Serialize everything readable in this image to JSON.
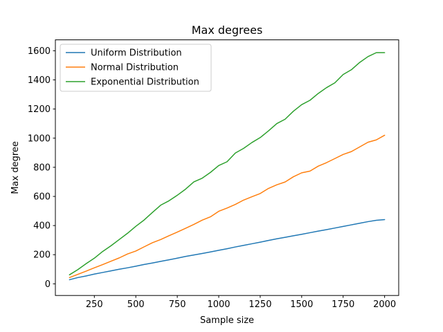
{
  "chart_data": {
    "type": "line",
    "title": "Max degrees",
    "xlabel": "Sample size",
    "ylabel": "Max degree",
    "xlim": [
      15,
      2085
    ],
    "ylim": [
      -80,
      1675
    ],
    "xticks": [
      250,
      500,
      750,
      1000,
      1250,
      1500,
      1750,
      2000
    ],
    "yticks": [
      0,
      200,
      400,
      600,
      800,
      1000,
      1200,
      1400,
      1600
    ],
    "grid": false,
    "legend_position": "top-left",
    "x": [
      100,
      150,
      200,
      250,
      300,
      350,
      400,
      450,
      500,
      550,
      600,
      650,
      700,
      750,
      800,
      850,
      900,
      950,
      1000,
      1050,
      1100,
      1150,
      1200,
      1250,
      1300,
      1350,
      1400,
      1450,
      1500,
      1550,
      1600,
      1650,
      1700,
      1750,
      1800,
      1850,
      1900,
      1950,
      2000
    ],
    "series": [
      {
        "name": "Uniform Distribution",
        "color": "#1f77b4",
        "values": [
          28,
          43,
          54,
          67,
          78,
          89,
          100,
          110,
          121,
          133,
          143,
          154,
          165,
          176,
          188,
          198,
          208,
          219,
          230,
          241,
          253,
          264,
          275,
          286,
          298,
          309,
          319,
          330,
          340,
          351,
          362,
          372,
          383,
          394,
          405,
          416,
          427,
          436,
          441
        ]
      },
      {
        "name": "Normal Distribution",
        "color": "#ff7f0e",
        "values": [
          43,
          65,
          87,
          110,
          132,
          155,
          178,
          205,
          225,
          254,
          282,
          304,
          330,
          355,
          381,
          408,
          437,
          460,
          498,
          520,
          545,
          575,
          598,
          620,
          655,
          680,
          699,
          735,
          762,
          774,
          808,
          832,
          860,
          888,
          908,
          940,
          972,
          988,
          1020
        ]
      },
      {
        "name": "Exponential Distribution",
        "color": "#2ca02c",
        "values": [
          62,
          97,
          138,
          176,
          222,
          261,
          304,
          347,
          395,
          438,
          490,
          540,
          570,
          608,
          650,
          700,
          725,
          765,
          812,
          838,
          898,
          930,
          970,
          1004,
          1050,
          1100,
          1130,
          1185,
          1230,
          1260,
          1307,
          1347,
          1380,
          1437,
          1470,
          1520,
          1560,
          1587,
          1587
        ]
      }
    ]
  }
}
